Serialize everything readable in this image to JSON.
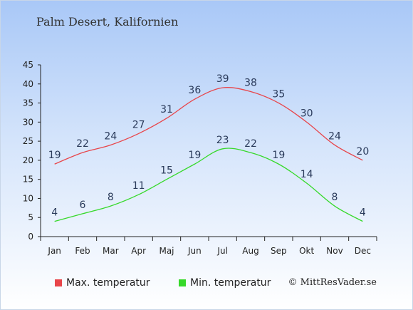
{
  "chart_data": {
    "type": "line",
    "title": "Palm Desert, Kalifornien",
    "categories": [
      "Jan",
      "Feb",
      "Mar",
      "Apr",
      "Maj",
      "Jun",
      "Jul",
      "Aug",
      "Sep",
      "Okt",
      "Nov",
      "Dec"
    ],
    "series": [
      {
        "name": "Max. temperatur",
        "color": "#e8454a",
        "values": [
          19,
          22,
          24,
          27,
          31,
          36,
          39,
          38,
          35,
          30,
          24,
          20
        ]
      },
      {
        "name": "Min. temperatur",
        "color": "#36d92a",
        "values": [
          4,
          6,
          8,
          11,
          15,
          19,
          23,
          22,
          19,
          14,
          8,
          4
        ]
      }
    ],
    "ylim": [
      0,
      45
    ],
    "yticks": [
      0,
      5,
      10,
      15,
      20,
      25,
      30,
      35,
      40,
      45
    ],
    "grid": false,
    "legend_position": "bottom-left"
  },
  "copyright": "© MittResVader.se"
}
